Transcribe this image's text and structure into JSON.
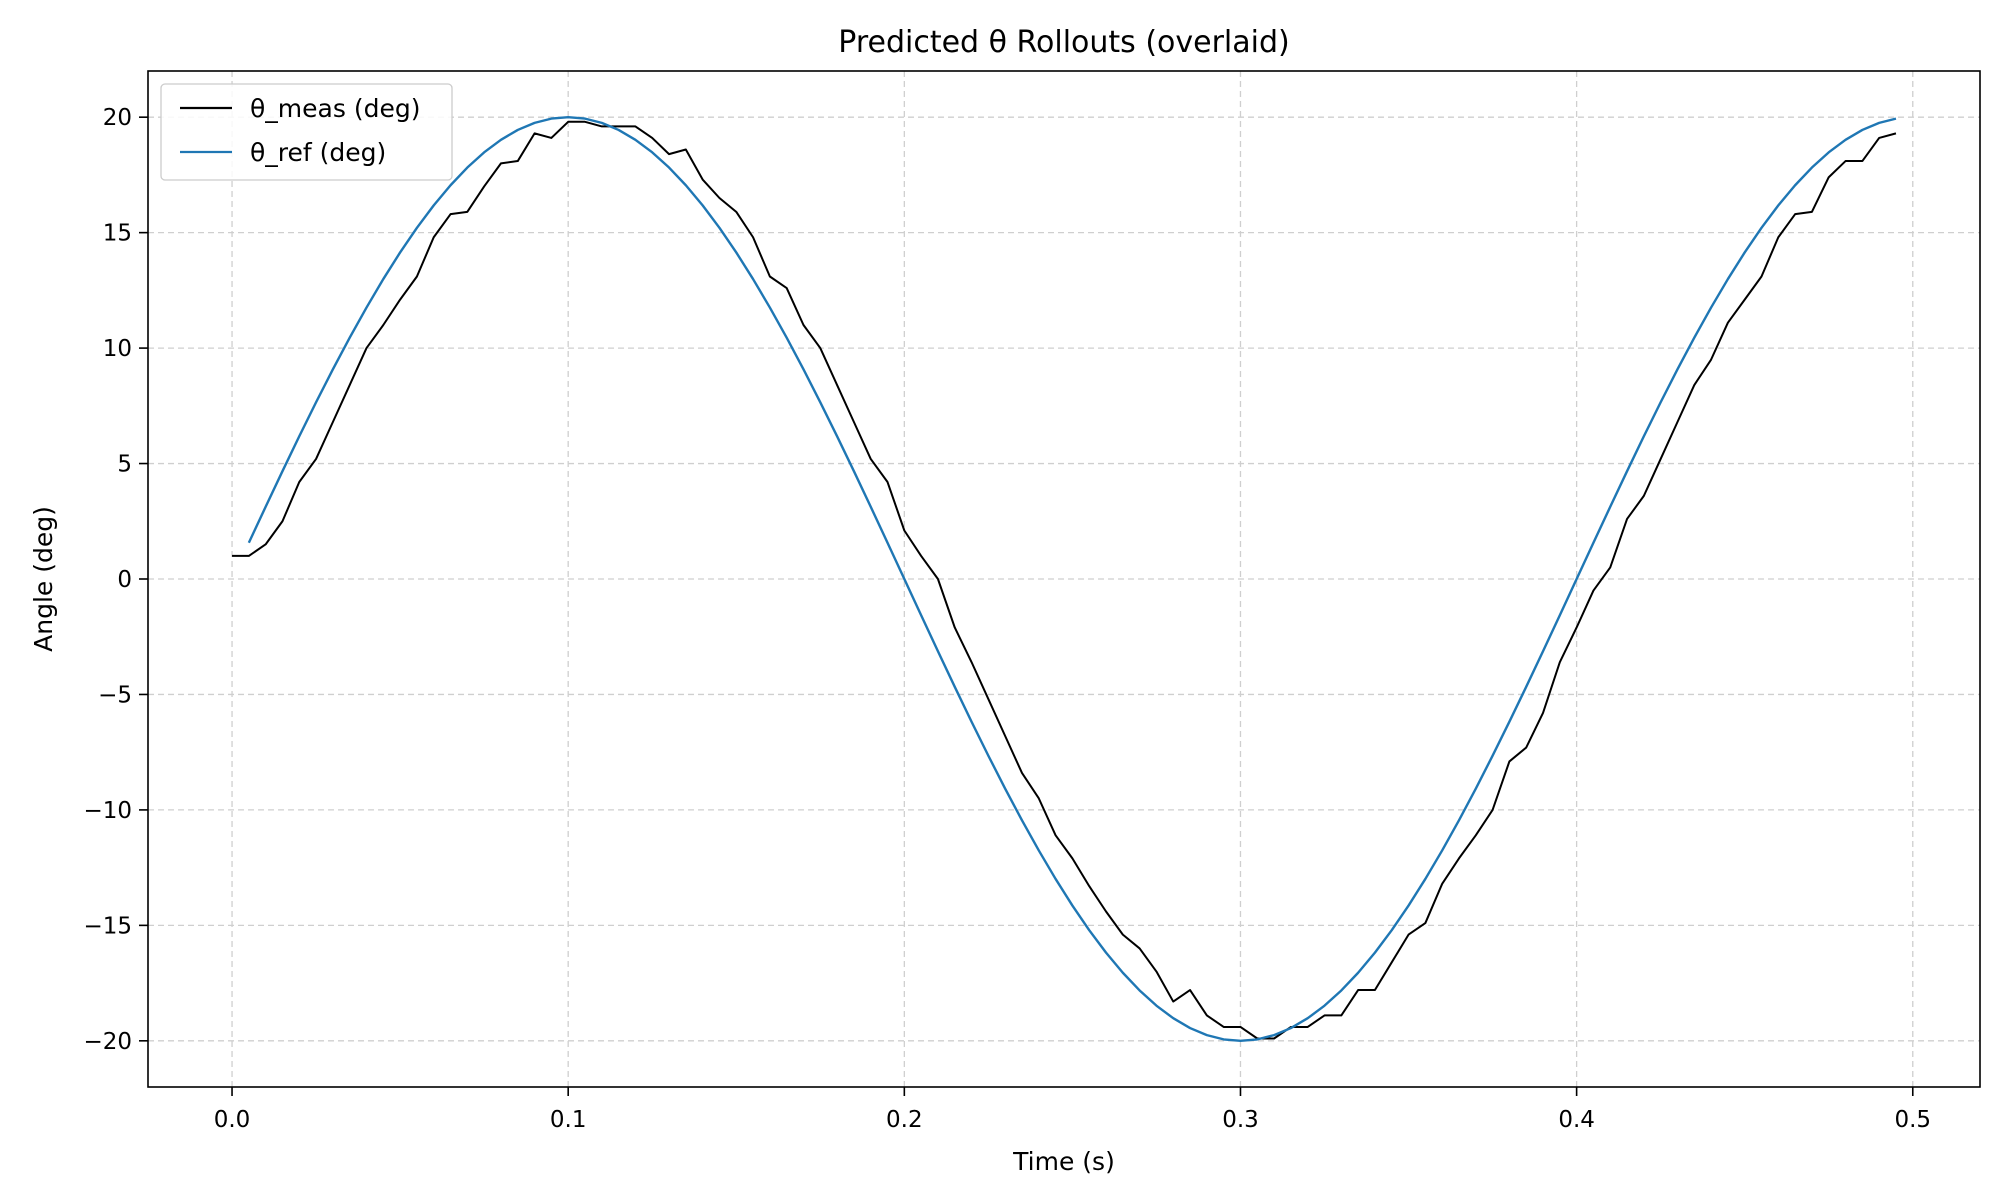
{
  "chart_data": {
    "type": "line",
    "title": "Predicted θ Rollouts (overlaid)",
    "xlabel": "Time (s)",
    "ylabel": "Angle (deg)",
    "xlim": [
      -0.025,
      0.52
    ],
    "ylim": [
      -22,
      22
    ],
    "xticks": [
      0.0,
      0.1,
      0.2,
      0.3,
      0.4,
      0.5
    ],
    "xtick_labels": [
      "0.0",
      "0.1",
      "0.2",
      "0.3",
      "0.4",
      "0.5"
    ],
    "yticks": [
      20,
      15,
      10,
      5,
      0,
      -5,
      -10,
      -15,
      -20
    ],
    "ytick_labels": [
      "20",
      "15",
      "10",
      "5",
      "0",
      "−5",
      "−10",
      "−15",
      "−20"
    ],
    "grid": true,
    "legend_position": "top-left",
    "series": [
      {
        "name": "θ_meas (deg)",
        "color": "#000000",
        "x": [
          0.0,
          0.005,
          0.01,
          0.015,
          0.02,
          0.025,
          0.03,
          0.035,
          0.04,
          0.045,
          0.05,
          0.055,
          0.06,
          0.065,
          0.07,
          0.075,
          0.08,
          0.085,
          0.09,
          0.095,
          0.1,
          0.105,
          0.11,
          0.115,
          0.12,
          0.125,
          0.13,
          0.135,
          0.14,
          0.145,
          0.15,
          0.155,
          0.16,
          0.165,
          0.17,
          0.175,
          0.18,
          0.185,
          0.19,
          0.195,
          0.2,
          0.205,
          0.21,
          0.215,
          0.22,
          0.225,
          0.23,
          0.235,
          0.24,
          0.245,
          0.25,
          0.255,
          0.26,
          0.265,
          0.27,
          0.275,
          0.28,
          0.285,
          0.29,
          0.295,
          0.3,
          0.305,
          0.31,
          0.315,
          0.32,
          0.325,
          0.33,
          0.335,
          0.34,
          0.345,
          0.35,
          0.355,
          0.36,
          0.365,
          0.37,
          0.375,
          0.38,
          0.385,
          0.39,
          0.395,
          0.4,
          0.405,
          0.41,
          0.415,
          0.42,
          0.425,
          0.43,
          0.435,
          0.44,
          0.445,
          0.45,
          0.455,
          0.46,
          0.465,
          0.47,
          0.475,
          0.48,
          0.485,
          0.49,
          0.495
        ],
        "y": [
          1.0,
          1.0,
          1.5,
          2.5,
          4.2,
          5.2,
          6.8,
          8.4,
          10.0,
          11.0,
          12.1,
          13.1,
          14.8,
          15.8,
          15.9,
          17.0,
          18.0,
          18.1,
          19.3,
          19.1,
          19.8,
          19.8,
          19.6,
          19.6,
          19.6,
          19.1,
          18.4,
          18.6,
          17.3,
          16.5,
          15.9,
          14.8,
          13.1,
          12.6,
          11.0,
          10.0,
          8.4,
          6.8,
          5.2,
          4.2,
          2.1,
          1.0,
          0.0,
          -2.1,
          -3.6,
          -5.2,
          -6.8,
          -8.4,
          -9.5,
          -11.1,
          -12.1,
          -13.3,
          -14.4,
          -15.4,
          -16.0,
          -17.0,
          -18.3,
          -17.8,
          -18.9,
          -19.4,
          -19.4,
          -19.9,
          -19.9,
          -19.4,
          -19.4,
          -18.9,
          -18.9,
          -17.8,
          -17.8,
          -16.6,
          -15.4,
          -14.9,
          -13.2,
          -12.1,
          -11.1,
          -10.0,
          -7.9,
          -7.3,
          -5.8,
          -3.6,
          -2.1,
          -0.5,
          0.5,
          2.6,
          3.6,
          5.2,
          6.8,
          8.4,
          9.5,
          11.1,
          12.1,
          13.1,
          14.8,
          15.8,
          15.9,
          17.4,
          18.1,
          18.1,
          19.1,
          19.3
        ]
      },
      {
        "name": "θ_ref (deg)",
        "color": "#1f77b4",
        "function": "20*sin(2*pi*2.5*t)",
        "x_start": 0.005,
        "x_end": 0.495,
        "x_step": 0.005
      }
    ]
  }
}
